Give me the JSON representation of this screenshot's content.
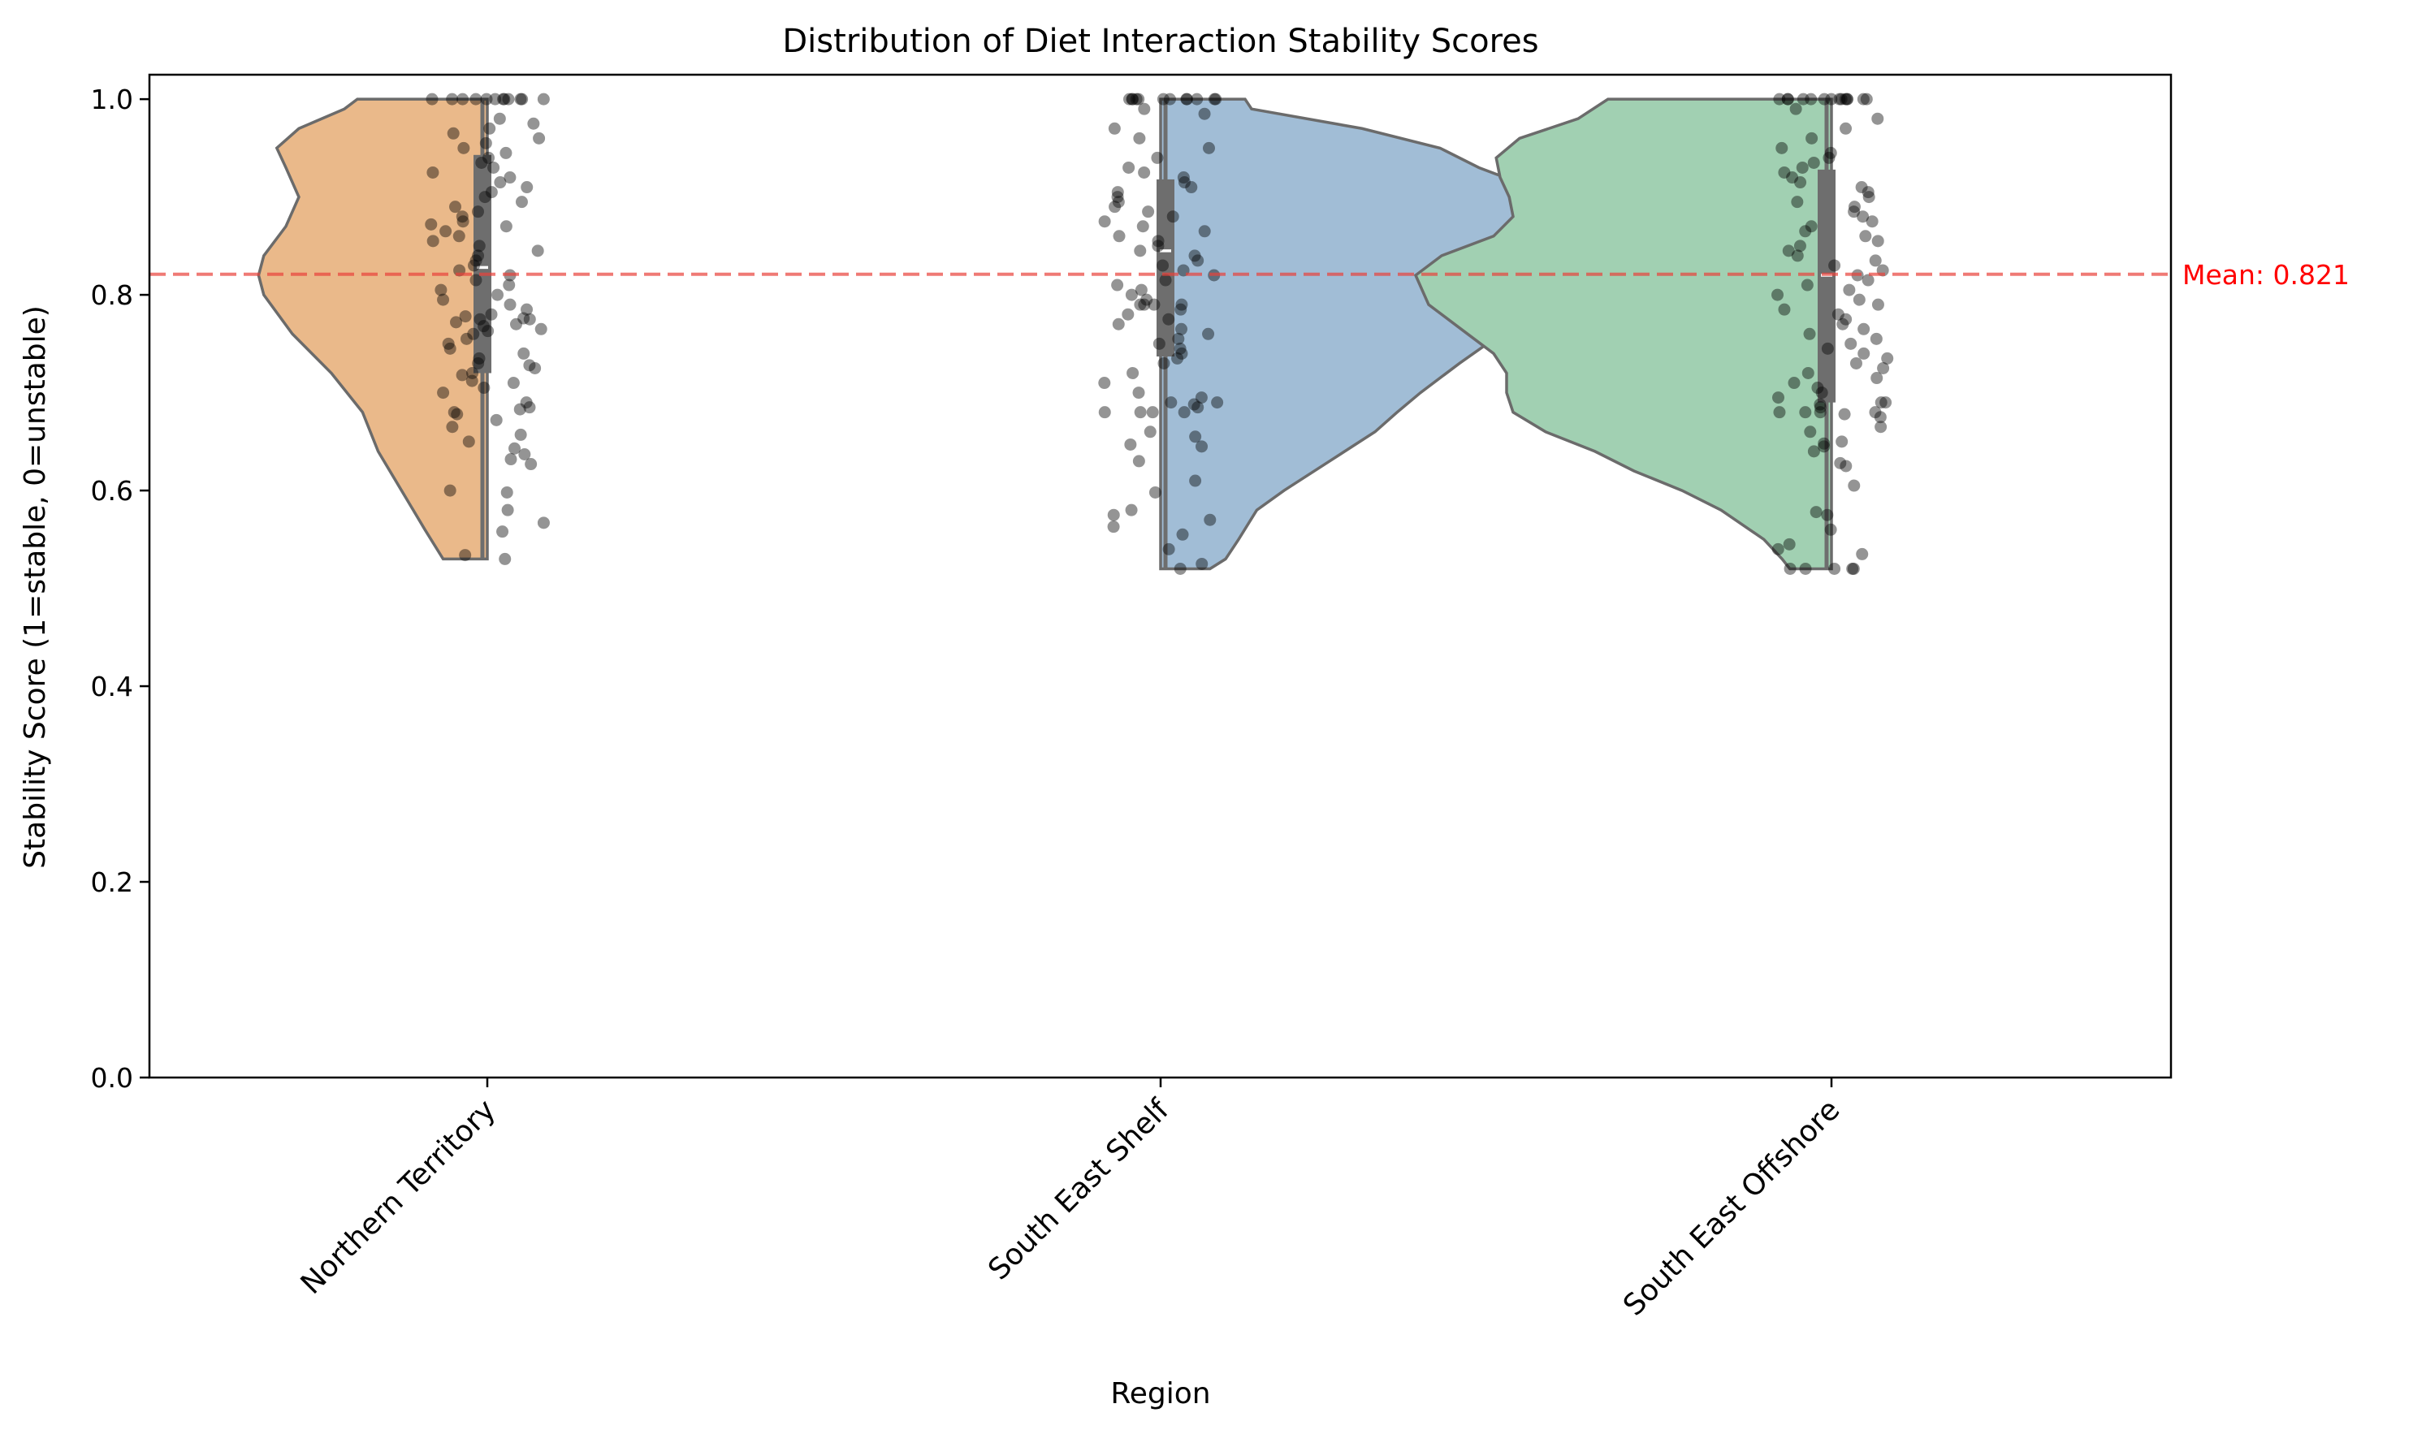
{
  "chart_data": {
    "type": "violin",
    "title": "Distribution of Diet Interaction Stability Scores",
    "xlabel": "Region",
    "ylabel": "Stability Score (1=stable, 0=unstable)",
    "ylim": [
      0,
      1.025
    ],
    "yticks": [
      0.0,
      0.2,
      0.4,
      0.6,
      0.8,
      1.0
    ],
    "ytick_labels": [
      "0.0",
      "0.2",
      "0.4",
      "0.6",
      "0.8",
      "1.0"
    ],
    "categories": [
      "Northern Territory",
      "South East Shelf",
      "South East Offshore"
    ],
    "mean": {
      "value": 0.821,
      "label": "Mean: 0.821",
      "color": "#e8423a"
    },
    "point_color": "#000000",
    "box_color": "#6e6e6e",
    "series": [
      {
        "name": "Northern Territory",
        "color": "#eab98a",
        "side": "left",
        "min": 0.53,
        "max": 1.0,
        "q1": 0.72,
        "median": 0.828,
        "q3": 0.943,
        "density_profile": [
          [
            0.53,
            0.34
          ],
          [
            0.56,
            0.48
          ],
          [
            0.6,
            0.66
          ],
          [
            0.64,
            0.84
          ],
          [
            0.68,
            0.96
          ],
          [
            0.72,
            1.2
          ],
          [
            0.76,
            1.5
          ],
          [
            0.8,
            1.72
          ],
          [
            0.82,
            1.76
          ],
          [
            0.84,
            1.72
          ],
          [
            0.87,
            1.55
          ],
          [
            0.9,
            1.45
          ],
          [
            0.93,
            1.55
          ],
          [
            0.95,
            1.62
          ],
          [
            0.97,
            1.45
          ],
          [
            0.99,
            1.1
          ],
          [
            1.0,
            1.0
          ]
        ],
        "points": [
          0.53,
          0.534,
          0.558,
          0.567,
          0.58,
          0.598,
          0.6,
          0.627,
          0.632,
          0.637,
          0.643,
          0.65,
          0.657,
          0.665,
          0.672,
          0.678,
          0.68,
          0.683,
          0.685,
          0.69,
          0.7,
          0.705,
          0.71,
          0.712,
          0.718,
          0.72,
          0.725,
          0.728,
          0.73,
          0.735,
          0.74,
          0.745,
          0.75,
          0.755,
          0.76,
          0.763,
          0.765,
          0.768,
          0.77,
          0.772,
          0.775,
          0.775,
          0.776,
          0.778,
          0.78,
          0.785,
          0.79,
          0.795,
          0.8,
          0.805,
          0.81,
          0.815,
          0.82,
          0.825,
          0.83,
          0.835,
          0.84,
          0.845,
          0.85,
          0.855,
          0.86,
          0.865,
          0.87,
          0.872,
          0.875,
          0.88,
          0.885,
          0.89,
          0.895,
          0.9,
          0.905,
          0.91,
          0.915,
          0.92,
          0.925,
          0.93,
          0.935,
          0.94,
          0.945,
          0.95,
          0.955,
          0.96,
          0.965,
          0.97,
          0.975,
          0.98,
          1.0,
          1.0,
          1.0,
          1.0,
          1.0,
          1.0,
          1.0,
          1.0,
          1.0,
          1.0,
          1.0,
          1.0
        ]
      },
      {
        "name": "South East Shelf",
        "color": "#a1bdd6",
        "side": "right",
        "min": 0.52,
        "max": 1.0,
        "q1": 0.737,
        "median": 0.845,
        "q3": 0.918,
        "density_profile": [
          [
            0.52,
            0.38
          ],
          [
            0.53,
            0.5
          ],
          [
            0.55,
            0.6
          ],
          [
            0.58,
            0.74
          ],
          [
            0.6,
            0.95
          ],
          [
            0.63,
            1.3
          ],
          [
            0.66,
            1.65
          ],
          [
            0.68,
            1.82
          ],
          [
            0.7,
            2.0
          ],
          [
            0.73,
            2.3
          ],
          [
            0.76,
            2.62
          ],
          [
            0.79,
            2.95
          ],
          [
            0.82,
            3.3
          ],
          [
            0.84,
            3.55
          ],
          [
            0.86,
            3.6
          ],
          [
            0.88,
            3.4
          ],
          [
            0.9,
            3.05
          ],
          [
            0.93,
            2.45
          ],
          [
            0.95,
            2.15
          ],
          [
            0.97,
            1.55
          ],
          [
            0.99,
            0.7
          ],
          [
            1.0,
            0.65
          ]
        ],
        "points": [
          0.52,
          0.525,
          0.54,
          0.555,
          0.563,
          0.57,
          0.575,
          0.58,
          0.598,
          0.61,
          0.63,
          0.645,
          0.647,
          0.655,
          0.66,
          0.68,
          0.68,
          0.68,
          0.68,
          0.685,
          0.688,
          0.69,
          0.69,
          0.695,
          0.7,
          0.71,
          0.72,
          0.73,
          0.735,
          0.74,
          0.745,
          0.75,
          0.755,
          0.76,
          0.765,
          0.77,
          0.775,
          0.78,
          0.785,
          0.79,
          0.79,
          0.79,
          0.79,
          0.795,
          0.8,
          0.805,
          0.81,
          0.815,
          0.82,
          0.825,
          0.83,
          0.835,
          0.84,
          0.845,
          0.85,
          0.855,
          0.86,
          0.865,
          0.87,
          0.875,
          0.88,
          0.885,
          0.89,
          0.895,
          0.9,
          0.905,
          0.91,
          0.915,
          0.92,
          0.925,
          0.93,
          0.94,
          0.95,
          0.96,
          0.97,
          0.985,
          0.99,
          1.0,
          1.0,
          1.0,
          1.0,
          1.0,
          1.0,
          1.0,
          1.0,
          1.0,
          1.0,
          1.0,
          1.0
        ]
      },
      {
        "name": "South East Offshore",
        "color": "#a1d0b2",
        "side": "left",
        "min": 0.52,
        "max": 1.0,
        "q1": 0.69,
        "median": 0.82,
        "q3": 0.928,
        "density_profile": [
          [
            0.52,
            0.32
          ],
          [
            0.53,
            0.38
          ],
          [
            0.55,
            0.52
          ],
          [
            0.58,
            0.85
          ],
          [
            0.6,
            1.15
          ],
          [
            0.62,
            1.52
          ],
          [
            0.64,
            1.82
          ],
          [
            0.66,
            2.2
          ],
          [
            0.68,
            2.45
          ],
          [
            0.7,
            2.5
          ],
          [
            0.72,
            2.5
          ],
          [
            0.74,
            2.6
          ],
          [
            0.76,
            2.8
          ],
          [
            0.79,
            3.1
          ],
          [
            0.82,
            3.2
          ],
          [
            0.84,
            3.0
          ],
          [
            0.86,
            2.6
          ],
          [
            0.88,
            2.45
          ],
          [
            0.9,
            2.48
          ],
          [
            0.92,
            2.55
          ],
          [
            0.94,
            2.58
          ],
          [
            0.96,
            2.4
          ],
          [
            0.98,
            1.95
          ],
          [
            1.0,
            1.72
          ]
        ],
        "points": [
          0.52,
          0.52,
          0.52,
          0.52,
          0.52,
          0.535,
          0.54,
          0.545,
          0.56,
          0.575,
          0.578,
          0.605,
          0.625,
          0.628,
          0.64,
          0.645,
          0.648,
          0.65,
          0.66,
          0.665,
          0.675,
          0.678,
          0.68,
          0.68,
          0.68,
          0.68,
          0.685,
          0.688,
          0.69,
          0.69,
          0.695,
          0.7,
          0.705,
          0.71,
          0.715,
          0.72,
          0.725,
          0.73,
          0.735,
          0.74,
          0.745,
          0.75,
          0.755,
          0.76,
          0.765,
          0.77,
          0.775,
          0.78,
          0.785,
          0.79,
          0.795,
          0.8,
          0.805,
          0.81,
          0.815,
          0.82,
          0.825,
          0.83,
          0.835,
          0.84,
          0.845,
          0.85,
          0.855,
          0.86,
          0.865,
          0.87,
          0.875,
          0.88,
          0.885,
          0.89,
          0.895,
          0.9,
          0.905,
          0.91,
          0.915,
          0.92,
          0.925,
          0.93,
          0.935,
          0.94,
          0.945,
          0.95,
          0.96,
          0.97,
          0.98,
          0.99,
          1.0,
          1.0,
          1.0,
          1.0,
          1.0,
          1.0,
          1.0,
          1.0,
          1.0,
          1.0,
          1.0,
          1.0,
          1.0,
          1.0
        ]
      }
    ]
  }
}
